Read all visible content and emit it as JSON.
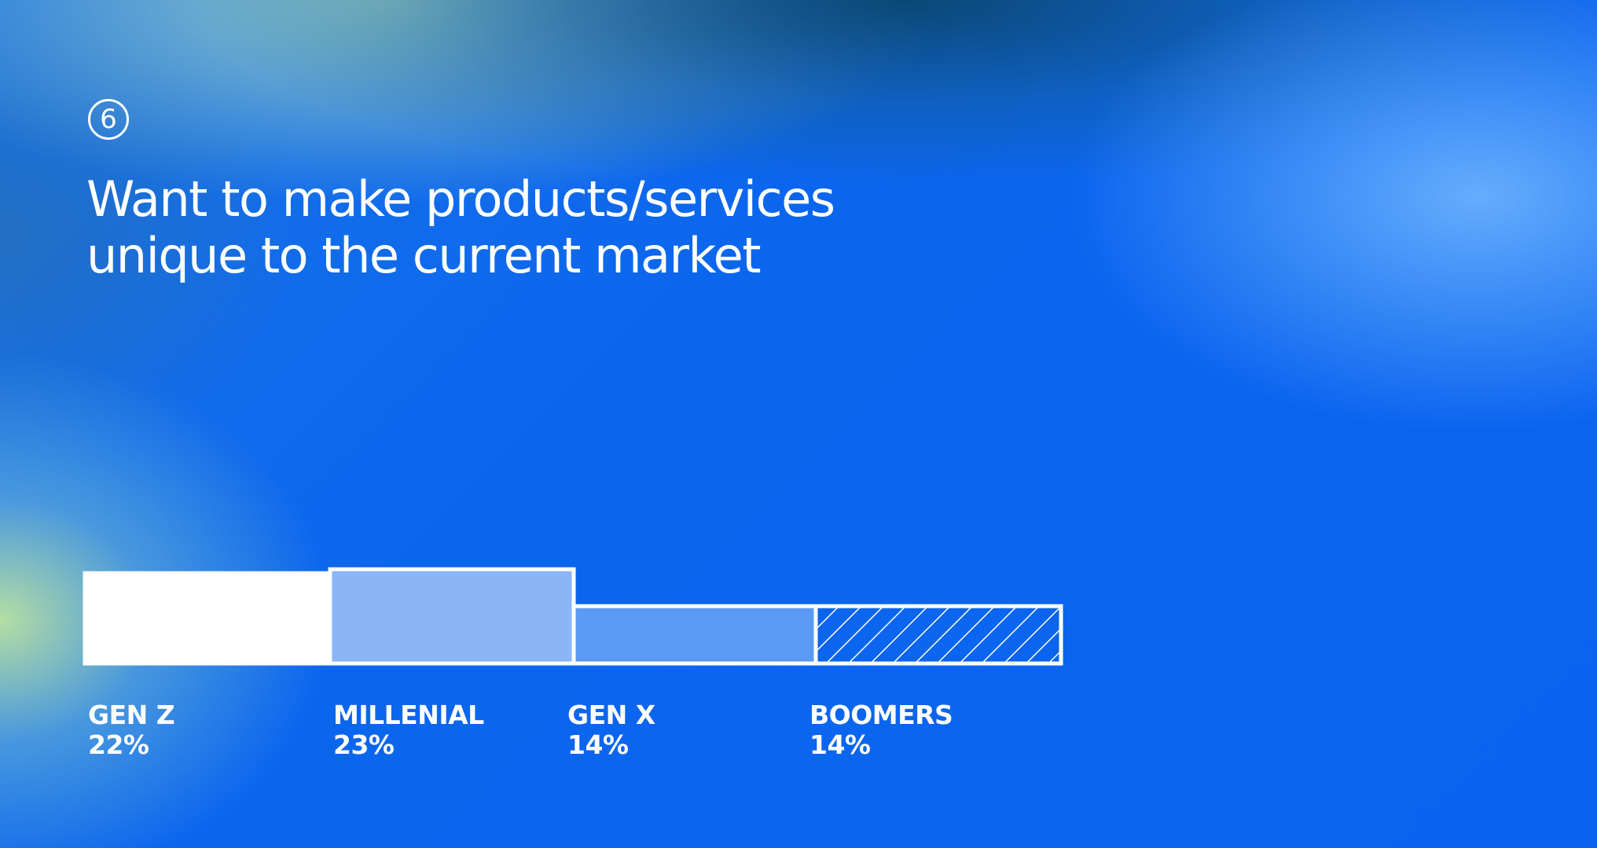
{
  "step_number": "6",
  "title_lines": [
    "Want to make products/services",
    "unique to the current market"
  ],
  "chart_data": {
    "type": "bar",
    "title": "Want to make products/services unique to the current market",
    "categories": [
      "GEN Z",
      "MILLENIAL",
      "GEN X",
      "BOOMERS"
    ],
    "values": [
      22,
      23,
      14,
      14
    ],
    "value_labels": [
      "22%",
      "23%",
      "14%",
      "14%"
    ],
    "unit": "%",
    "bar_styles": [
      "solid-white",
      "light-blue",
      "medium-blue",
      "hatched"
    ],
    "colors": {
      "gen_z": "#ffffff",
      "millenial": "#8ab6f8",
      "gen_x": "#5a9af5",
      "boomers_hatch": "#ffffff",
      "outline": "#ffffff"
    },
    "grid": false,
    "legend": "none"
  }
}
